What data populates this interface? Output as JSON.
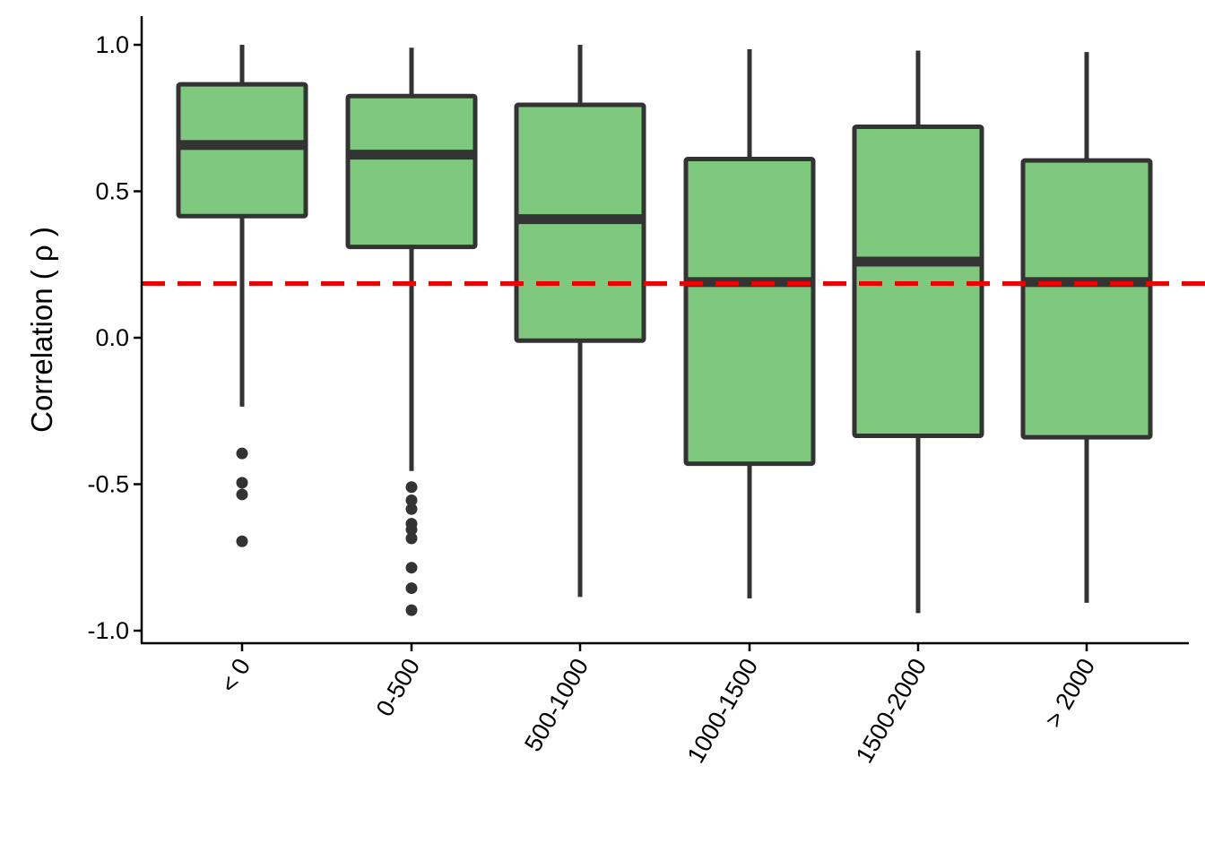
{
  "chart_data": {
    "type": "boxplot",
    "title": "",
    "xlabel": "",
    "ylabel": "Correlation ( ρ )",
    "ylim": [
      -1.0,
      1.1
    ],
    "yticks": [
      -1.0,
      -0.5,
      0.0,
      0.5,
      1.0
    ],
    "ytick_labels": [
      "-1.0",
      "-0.5",
      "0.0",
      "0.5",
      "1.0"
    ],
    "grid": false,
    "reference_line": {
      "y": 0.185,
      "color": "#ee0000",
      "style": "dashed"
    },
    "box_fill": "#7fc97f",
    "box_stroke": "#333333",
    "categories": [
      "< 0",
      "0-500",
      "500-1000",
      "1000-1500",
      "1500-2000",
      "> 2000"
    ],
    "boxes": [
      {
        "category": "< 0",
        "whisker_low": -0.235,
        "q1": 0.415,
        "median": 0.658,
        "q3": 0.865,
        "whisker_high": 1.0,
        "outliers": [
          -0.395,
          -0.495,
          -0.535,
          -0.695
        ]
      },
      {
        "category": "0-500",
        "whisker_low": -0.455,
        "q1": 0.31,
        "median": 0.625,
        "q3": 0.825,
        "whisker_high": 0.99,
        "outliers": [
          -0.51,
          -0.555,
          -0.585,
          -0.635,
          -0.655,
          -0.685,
          -0.785,
          -0.855,
          -0.93
        ]
      },
      {
        "category": "500-1000",
        "whisker_low": -0.885,
        "q1": -0.01,
        "median": 0.405,
        "q3": 0.795,
        "whisker_high": 1.0,
        "outliers": []
      },
      {
        "category": "1000-1500",
        "whisker_low": -0.89,
        "q1": -0.43,
        "median": 0.19,
        "q3": 0.61,
        "whisker_high": 0.985,
        "outliers": []
      },
      {
        "category": "1500-2000",
        "whisker_low": -0.94,
        "q1": -0.335,
        "median": 0.26,
        "q3": 0.72,
        "whisker_high": 0.98,
        "outliers": []
      },
      {
        "category": "> 2000",
        "whisker_low": -0.905,
        "q1": -0.34,
        "median": 0.19,
        "q3": 0.605,
        "whisker_high": 0.975,
        "outliers": []
      }
    ]
  }
}
